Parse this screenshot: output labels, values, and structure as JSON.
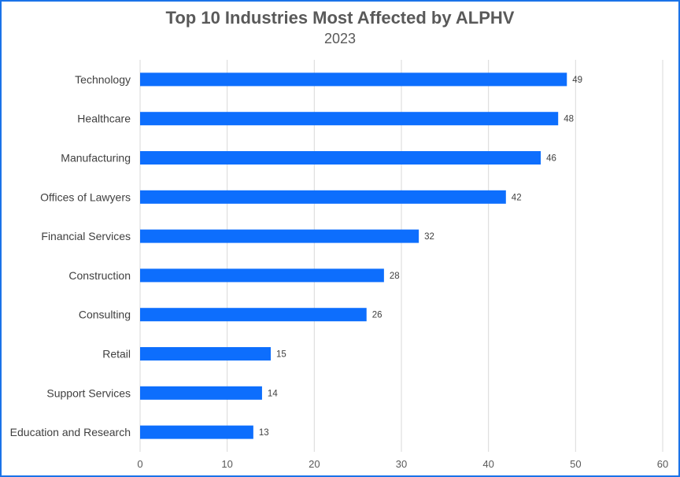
{
  "chart_data": {
    "type": "bar",
    "orientation": "horizontal",
    "title": "Top 10 Industries Most Affected by ALPHV",
    "subtitle": "2023",
    "categories": [
      "Technology",
      "Healthcare",
      "Manufacturing",
      "Offices of Lawyers",
      "Financial Services",
      "Construction",
      "Consulting",
      "Retail",
      "Support Services",
      "Education and Research"
    ],
    "values": [
      49,
      48,
      46,
      42,
      32,
      28,
      26,
      15,
      14,
      13
    ],
    "xlim": [
      0,
      60
    ],
    "xticks": [
      "0",
      "10",
      "20",
      "30",
      "40",
      "50",
      "60"
    ],
    "grid": "vertical",
    "legend": "none",
    "bar_color": "#0d6efd",
    "data_labels": true
  }
}
